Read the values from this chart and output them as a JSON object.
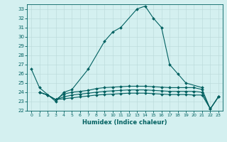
{
  "xlabel": "Humidex (Indice chaleur)",
  "x_all": [
    0,
    1,
    2,
    3,
    4,
    5,
    6,
    7,
    8,
    9,
    10,
    11,
    12,
    13,
    14,
    15,
    16,
    17,
    18,
    19,
    20,
    21,
    22,
    23
  ],
  "main_x": [
    0,
    1,
    3,
    4,
    5,
    7,
    9,
    10,
    11,
    13,
    14,
    15,
    16,
    17,
    18,
    19,
    21
  ],
  "main_y": [
    26.5,
    24.5,
    23.0,
    24.0,
    24.3,
    26.5,
    29.5,
    30.5,
    31.0,
    33.0,
    33.3,
    32.0,
    31.0,
    27.0,
    26.0,
    25.0,
    24.5
  ],
  "line2_x": [
    1,
    2,
    3,
    4,
    5,
    6,
    7,
    8,
    9,
    10,
    11,
    12,
    13,
    14,
    15,
    16,
    17,
    18,
    19,
    20,
    21,
    22,
    23
  ],
  "line2_y": [
    24.0,
    23.7,
    23.2,
    23.8,
    24.0,
    24.1,
    24.2,
    24.4,
    24.5,
    24.55,
    24.6,
    24.65,
    24.65,
    24.65,
    24.6,
    24.55,
    24.5,
    24.5,
    24.5,
    24.5,
    24.3,
    22.2,
    23.5
  ],
  "line3_x": [
    1,
    2,
    3,
    4,
    5,
    6,
    7,
    8,
    9,
    10,
    11,
    12,
    13,
    14,
    15,
    16,
    17,
    18,
    19,
    20,
    21,
    22,
    23
  ],
  "line3_y": [
    24.0,
    23.7,
    23.2,
    23.5,
    23.7,
    23.8,
    23.9,
    24.0,
    24.1,
    24.15,
    24.2,
    24.25,
    24.25,
    24.25,
    24.2,
    24.15,
    24.1,
    24.1,
    24.1,
    24.1,
    24.0,
    22.2,
    23.5
  ],
  "line4_x": [
    1,
    2,
    3,
    4,
    5,
    6,
    7,
    8,
    9,
    10,
    11,
    12,
    13,
    14,
    15,
    16,
    17,
    18,
    19,
    20,
    21,
    22,
    23
  ],
  "line4_y": [
    24.0,
    23.7,
    23.2,
    23.3,
    23.4,
    23.5,
    23.6,
    23.7,
    23.75,
    23.8,
    23.85,
    23.9,
    23.9,
    23.9,
    23.85,
    23.8,
    23.75,
    23.75,
    23.75,
    23.7,
    23.7,
    22.2,
    23.5
  ],
  "ylim": [
    22,
    33.5
  ],
  "yticks": [
    22,
    23,
    24,
    25,
    26,
    27,
    28,
    29,
    30,
    31,
    32,
    33
  ],
  "line_color": "#006060",
  "bg_color": "#d4f0f0",
  "grid_color": "#b8d8d8"
}
